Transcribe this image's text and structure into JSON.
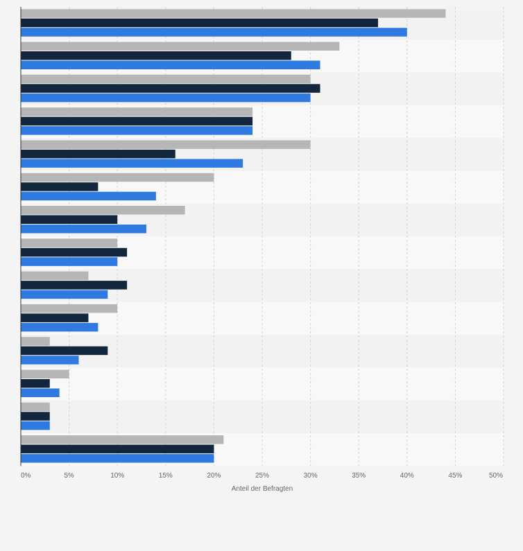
{
  "chart_data": {
    "type": "bar",
    "orientation": "horizontal",
    "categories": [
      "",
      "",
      "",
      "",
      "",
      "",
      "",
      "",
      "",
      "",
      "",
      "",
      "",
      ""
    ],
    "series": [
      {
        "values": [
          44,
          33,
          30,
          24,
          30,
          20,
          17,
          10,
          7,
          10,
          3,
          5,
          3,
          21
        ]
      },
      {
        "values": [
          37,
          28,
          31,
          24,
          16,
          8,
          10,
          11,
          11,
          7,
          9,
          3,
          3,
          20
        ]
      },
      {
        "values": [
          40,
          31,
          30,
          24,
          23,
          14,
          13,
          10,
          9,
          8,
          6,
          4,
          3,
          20
        ]
      }
    ],
    "xlabel": "Anteil der Befragten",
    "xlim": [
      0,
      50
    ],
    "xticks": [
      0,
      5,
      10,
      15,
      20,
      25,
      30,
      35,
      40,
      45,
      50
    ],
    "tick_suffix": "%",
    "grid": true,
    "legend": "none",
    "colors": {
      "series": [
        "#b6b6b6",
        "#12263d",
        "#2e7ae0"
      ],
      "band_even": "#f2f2f2",
      "band_odd": "#f8f8f8",
      "grid": "#d2d2d2",
      "axis": "#333333",
      "tick_text": "#666666",
      "page_background": "#f4f4f4"
    }
  }
}
